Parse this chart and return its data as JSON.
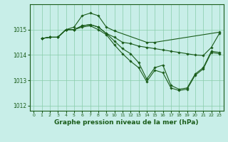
{
  "background_color": "#c8eee8",
  "grid_color": "#88ccaa",
  "line_color": "#1a5c1a",
  "marker_color": "#1a5c1a",
  "xlabel": "Graphe pression niveau de la mer (hPa)",
  "xlabel_fontsize": 6.5,
  "ylim": [
    1011.8,
    1016.0
  ],
  "xlim": [
    -0.5,
    23.5
  ],
  "yticks": [
    1012,
    1013,
    1014,
    1015
  ],
  "xticks": [
    0,
    1,
    2,
    3,
    4,
    5,
    6,
    7,
    8,
    9,
    10,
    11,
    12,
    13,
    14,
    15,
    16,
    17,
    18,
    19,
    20,
    21,
    22,
    23
  ],
  "series": [
    {
      "x": [
        1,
        2,
        3,
        4,
        5,
        6,
        7,
        8,
        9,
        10,
        14,
        15,
        23
      ],
      "y": [
        1014.65,
        1014.7,
        1014.7,
        1015.0,
        1015.1,
        1015.55,
        1015.65,
        1015.55,
        1015.1,
        1014.95,
        1014.5,
        1014.5,
        1014.9
      ]
    },
    {
      "x": [
        1,
        2,
        3,
        4,
        5,
        6,
        7,
        8,
        9,
        10,
        11,
        12,
        13,
        14,
        15,
        16,
        17,
        18,
        19,
        20,
        21,
        22,
        23
      ],
      "y": [
        1014.65,
        1014.7,
        1014.7,
        1015.0,
        1015.0,
        1015.15,
        1015.2,
        1015.1,
        1014.85,
        1014.7,
        1014.5,
        1014.45,
        1014.35,
        1014.3,
        1014.25,
        1014.2,
        1014.15,
        1014.1,
        1014.05,
        1014.0,
        1013.98,
        1014.3,
        1014.85
      ]
    },
    {
      "x": [
        1,
        2,
        3,
        4,
        5,
        6,
        7,
        8,
        9,
        10,
        11,
        12,
        13,
        14,
        15,
        16,
        17,
        18,
        19,
        20,
        21,
        22,
        23
      ],
      "y": [
        1014.65,
        1014.7,
        1014.7,
        1015.0,
        1015.0,
        1015.15,
        1015.2,
        1015.1,
        1014.85,
        1014.55,
        1014.25,
        1014.05,
        1013.7,
        1013.05,
        1013.5,
        1013.6,
        1012.8,
        1012.65,
        1012.7,
        1013.25,
        1013.5,
        1014.15,
        1014.1
      ]
    },
    {
      "x": [
        1,
        2,
        3,
        4,
        5,
        6,
        7,
        8,
        9,
        10,
        11,
        12,
        13,
        14,
        15,
        16,
        17,
        18,
        19,
        20,
        21,
        22,
        23
      ],
      "y": [
        1014.65,
        1014.7,
        1014.7,
        1015.0,
        1015.0,
        1015.1,
        1015.15,
        1015.0,
        1014.8,
        1014.4,
        1014.05,
        1013.75,
        1013.5,
        1012.95,
        1013.4,
        1013.3,
        1012.7,
        1012.6,
        1012.65,
        1013.2,
        1013.45,
        1014.1,
        1014.05
      ]
    }
  ]
}
